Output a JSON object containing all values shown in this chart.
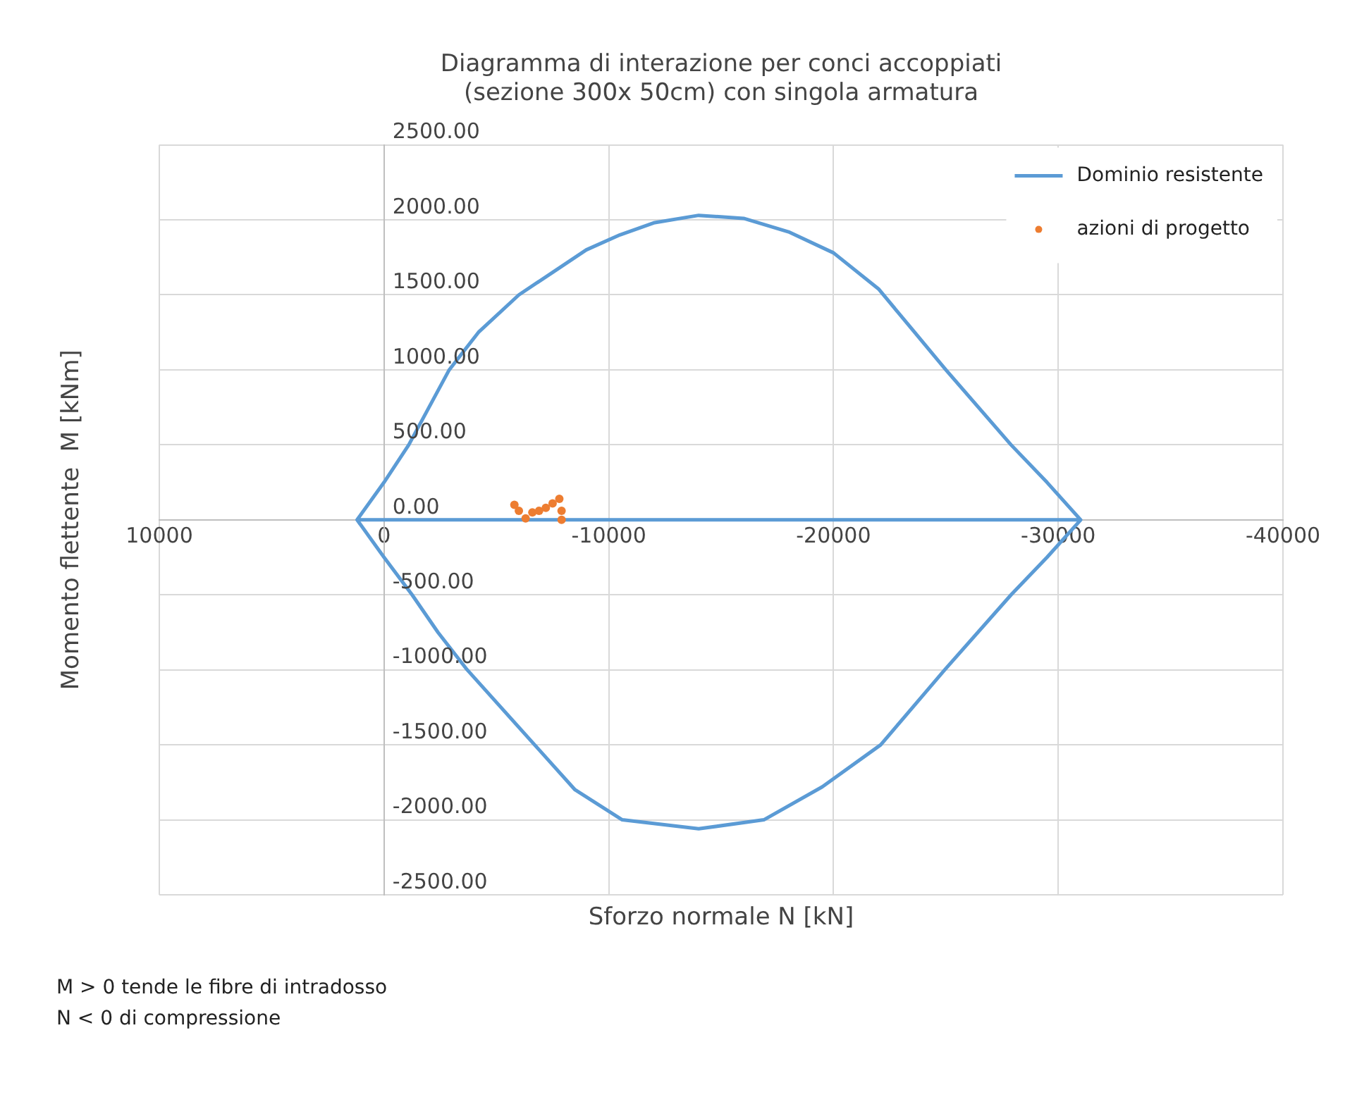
{
  "chart_data": {
    "type": "line",
    "title": "Diagramma di interazione per conci accoppiati\n(sezione 300x 50cm) con singola armatura",
    "xlabel": "Sforzo normale N [kN]",
    "ylabel": "Momento flettente  M [kNm]",
    "annotations": [
      "M > 0 tende le fibre di intradosso",
      "N < 0 di compressione"
    ],
    "xlim": [
      10000,
      -40000
    ],
    "xticks": [
      10000,
      0,
      -10000,
      -20000,
      -30000,
      -40000
    ],
    "ylim": [
      -2500,
      2500
    ],
    "yticks": [
      {
        "value": -2500,
        "label": "-2500.00"
      },
      {
        "value": -2000,
        "label": "-2000.00"
      },
      {
        "value": -1500,
        "label": "-1500.00"
      },
      {
        "value": -1000,
        "label": "-1000.00"
      },
      {
        "value": -500,
        "label": "-500.00"
      },
      {
        "value": 0,
        "label": "0.00"
      },
      {
        "value": 500,
        "label": "500.00"
      },
      {
        "value": 1000,
        "label": "1000.00"
      },
      {
        "value": 1500,
        "label": "1500.00"
      },
      {
        "value": 2000,
        "label": "2000.00"
      },
      {
        "value": 2500,
        "label": "2500.00"
      }
    ],
    "grid": true,
    "legend": "top right",
    "marker": "none",
    "series": [
      {
        "name": "Dominio resistente",
        "type": "line",
        "color": "#5b9bd5",
        "x": [
          1200,
          0,
          -1100,
          -2900,
          -4200,
          -6000,
          -7500,
          -9000,
          -10500,
          -12000,
          -14000,
          -16000,
          -18000,
          -20000,
          -22000,
          -23500,
          -25000,
          -27900,
          -29500,
          -31000,
          -29500,
          -27900,
          -24950,
          -22100,
          -19500,
          -16900,
          -14000,
          -10600,
          -8500,
          -6700,
          -5200,
          -3700,
          -2400,
          -1250,
          0,
          1200,
          -31000
        ],
        "values": [
          0,
          250,
          500,
          1000,
          1250,
          1500,
          1650,
          1800,
          1900,
          1980,
          2030,
          2010,
          1920,
          1780,
          1540,
          1270,
          1000,
          500,
          250,
          0,
          -250,
          -500,
          -1000,
          -1500,
          -1780,
          -2000,
          -2060,
          -2000,
          -1800,
          -1500,
          -1250,
          -1000,
          -750,
          -500,
          -250,
          0,
          0
        ]
      },
      {
        "name": "azioni di progetto",
        "type": "scatter",
        "color": "#ed7d31",
        "marker": "circle",
        "x": [
          -5800,
          -6000,
          -6300,
          -6600,
          -6900,
          -7200,
          -7500,
          -7800,
          -7900,
          -7900
        ],
        "values": [
          100,
          60,
          10,
          50,
          60,
          80,
          110,
          140,
          60,
          0
        ]
      }
    ]
  }
}
